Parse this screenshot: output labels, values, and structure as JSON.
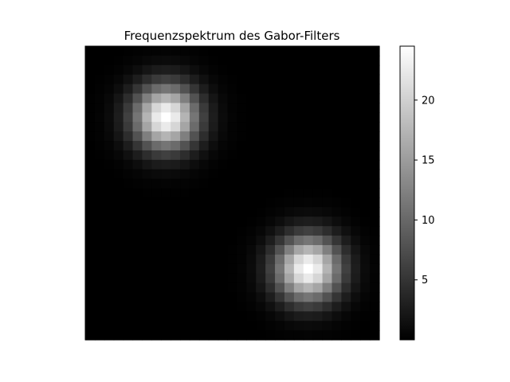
{
  "chart_data": {
    "type": "heatmap",
    "title": "Frequenzspektrum des Gabor-Filters",
    "xlabel": "",
    "ylabel": "",
    "grid": false,
    "axis_ticks_visible": false,
    "colormap": "gray",
    "value_range": [
      0.0,
      24.5
    ],
    "grid_size": [
      31,
      31
    ],
    "peaks": [
      {
        "row": 7,
        "col": 8,
        "value": 24.5,
        "sigma_cells": 2.4
      },
      {
        "row": 23,
        "col": 23,
        "value": 24.5,
        "sigma_cells": 2.4
      }
    ],
    "colorbar": {
      "ticks": [
        5,
        10,
        15,
        20
      ],
      "tick_labels": [
        "5",
        "10",
        "15",
        "20"
      ],
      "min": 0.0,
      "max": 24.5
    }
  }
}
